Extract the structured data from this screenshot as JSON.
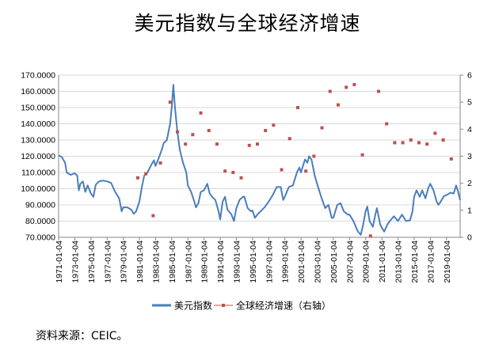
{
  "title": "美元指数与全球经济增速",
  "source_note": "资料来源：CEIC。",
  "colors": {
    "dxy": "#4a7ebb",
    "gdp": "#c0504d",
    "axis": "#868686"
  },
  "chart_data": {
    "type": "line",
    "title": "美元指数与全球经济增速",
    "y_left": {
      "min": 70,
      "max": 170,
      "step": 10,
      "tick_labels": [
        "70.0000",
        "80.0000",
        "90.0000",
        "100.0000",
        "110.0000",
        "120.0000",
        "130.0000",
        "140.0000",
        "150.0000",
        "160.0000",
        "170.0000"
      ]
    },
    "y_right": {
      "min": 0,
      "max": 6,
      "step": 1,
      "tick_labels": [
        "0",
        "1",
        "2",
        "3",
        "4",
        "5",
        "6"
      ]
    },
    "x_range": [
      1971.0,
      2020.7
    ],
    "x_tick_labels": [
      "1971-01-04",
      "1973-01-04",
      "1975-01-04",
      "1977-01-04",
      "1979-01-04",
      "1981-01-04",
      "1983-01-04",
      "1985-01-04",
      "1987-01-04",
      "1989-01-04",
      "1991-01-04",
      "1993-01-04",
      "1995-01-04",
      "1997-01-04",
      "1999-01-04",
      "2001-01-04",
      "2003-01-04",
      "2005-01-04",
      "2007-01-04",
      "2009-01-04",
      "2011-01-04",
      "2013-01-04",
      "2015-01-04",
      "2017-01-04",
      "2019-01-04"
    ],
    "grid": true,
    "legend_position": "bottom",
    "series": [
      {
        "name": "美元指数",
        "kind": "line",
        "axis": "left",
        "points": [
          [
            1971.0,
            120.5
          ],
          [
            1971.4,
            119.5
          ],
          [
            1971.8,
            116
          ],
          [
            1972.0,
            110
          ],
          [
            1972.5,
            108.5
          ],
          [
            1973.0,
            109.5
          ],
          [
            1973.3,
            108
          ],
          [
            1973.5,
            99
          ],
          [
            1973.7,
            103
          ],
          [
            1974.0,
            104.5
          ],
          [
            1974.3,
            98
          ],
          [
            1974.6,
            102
          ],
          [
            1975.0,
            97
          ],
          [
            1975.3,
            95
          ],
          [
            1975.6,
            102.5
          ],
          [
            1976.0,
            104.5
          ],
          [
            1976.5,
            105
          ],
          [
            1977.0,
            104.5
          ],
          [
            1977.5,
            103.5
          ],
          [
            1978.0,
            98
          ],
          [
            1978.5,
            94
          ],
          [
            1978.8,
            86
          ],
          [
            1979.0,
            88.5
          ],
          [
            1979.5,
            88.5
          ],
          [
            1980.0,
            87
          ],
          [
            1980.3,
            84.5
          ],
          [
            1980.6,
            86
          ],
          [
            1981.0,
            92
          ],
          [
            1981.3,
            101
          ],
          [
            1981.6,
            108
          ],
          [
            1982.0,
            110
          ],
          [
            1982.5,
            115
          ],
          [
            1982.8,
            117.5
          ],
          [
            1983.0,
            114
          ],
          [
            1983.4,
            119
          ],
          [
            1983.8,
            124.5
          ],
          [
            1984.0,
            128
          ],
          [
            1984.4,
            130
          ],
          [
            1984.8,
            140
          ],
          [
            1985.0,
            150
          ],
          [
            1985.2,
            164
          ],
          [
            1985.4,
            150
          ],
          [
            1985.7,
            135
          ],
          [
            1986.0,
            124
          ],
          [
            1986.4,
            116
          ],
          [
            1986.8,
            110
          ],
          [
            1987.0,
            102
          ],
          [
            1987.4,
            98
          ],
          [
            1987.8,
            92
          ],
          [
            1988.0,
            88.5
          ],
          [
            1988.3,
            91
          ],
          [
            1988.6,
            98
          ],
          [
            1989.0,
            99
          ],
          [
            1989.4,
            103
          ],
          [
            1989.7,
            97
          ],
          [
            1990.0,
            95
          ],
          [
            1990.4,
            93
          ],
          [
            1990.8,
            86
          ],
          [
            1991.0,
            81
          ],
          [
            1991.3,
            92
          ],
          [
            1991.6,
            95
          ],
          [
            1991.9,
            87
          ],
          [
            1992.0,
            86.5
          ],
          [
            1992.4,
            84
          ],
          [
            1992.7,
            80
          ],
          [
            1993.0,
            88
          ],
          [
            1993.4,
            93
          ],
          [
            1993.8,
            95
          ],
          [
            1994.0,
            95
          ],
          [
            1994.4,
            88
          ],
          [
            1994.8,
            86
          ],
          [
            1995.0,
            86.5
          ],
          [
            1995.3,
            82
          ],
          [
            1995.6,
            84
          ],
          [
            1996.0,
            86
          ],
          [
            1996.5,
            88.5
          ],
          [
            1997.0,
            92
          ],
          [
            1997.5,
            96
          ],
          [
            1998.0,
            101
          ],
          [
            1998.5,
            101
          ],
          [
            1998.8,
            93
          ],
          [
            1999.0,
            95
          ],
          [
            1999.5,
            101
          ],
          [
            2000.0,
            102
          ],
          [
            2000.5,
            110
          ],
          [
            2000.8,
            113
          ],
          [
            2001.0,
            110
          ],
          [
            2001.5,
            118
          ],
          [
            2001.8,
            116
          ],
          [
            2002.0,
            120
          ],
          [
            2002.3,
            118
          ],
          [
            2002.7,
            108
          ],
          [
            2003.0,
            103
          ],
          [
            2003.5,
            95
          ],
          [
            2004.0,
            88
          ],
          [
            2004.4,
            90
          ],
          [
            2004.8,
            82
          ],
          [
            2005.0,
            82
          ],
          [
            2005.5,
            90
          ],
          [
            2005.9,
            91
          ],
          [
            2006.3,
            86
          ],
          [
            2006.8,
            84
          ],
          [
            2007.0,
            84
          ],
          [
            2007.5,
            80
          ],
          [
            2008.0,
            74
          ],
          [
            2008.4,
            71.5
          ],
          [
            2008.7,
            78
          ],
          [
            2009.0,
            86
          ],
          [
            2009.2,
            89
          ],
          [
            2009.5,
            80
          ],
          [
            2009.9,
            76.5
          ],
          [
            2010.2,
            84
          ],
          [
            2010.4,
            88
          ],
          [
            2010.8,
            78
          ],
          [
            2011.0,
            76
          ],
          [
            2011.3,
            73.5
          ],
          [
            2011.7,
            78
          ],
          [
            2012.0,
            80
          ],
          [
            2012.5,
            83
          ],
          [
            2013.0,
            80
          ],
          [
            2013.5,
            84
          ],
          [
            2014.0,
            80
          ],
          [
            2014.5,
            80.5
          ],
          [
            2014.8,
            86
          ],
          [
            2015.0,
            95
          ],
          [
            2015.3,
            99
          ],
          [
            2015.7,
            95
          ],
          [
            2016.0,
            99
          ],
          [
            2016.4,
            94
          ],
          [
            2016.8,
            101
          ],
          [
            2017.0,
            103
          ],
          [
            2017.4,
            99
          ],
          [
            2017.8,
            92
          ],
          [
            2018.0,
            90
          ],
          [
            2018.3,
            92
          ],
          [
            2018.7,
            95.5
          ],
          [
            2019.0,
            96
          ],
          [
            2019.5,
            97.5
          ],
          [
            2019.9,
            97
          ],
          [
            2020.2,
            102
          ],
          [
            2020.4,
            99
          ],
          [
            2020.7,
            93
          ]
        ]
      },
      {
        "name": "全球经济增速（右轴）",
        "kind": "scatter",
        "axis": "right",
        "points": [
          [
            1980.8,
            2.2
          ],
          [
            1981.8,
            2.35
          ],
          [
            1982.7,
            0.8
          ],
          [
            1983.6,
            2.75
          ],
          [
            1984.8,
            5.0
          ],
          [
            1985.7,
            3.9
          ],
          [
            1986.7,
            3.45
          ],
          [
            1987.6,
            3.8
          ],
          [
            1988.6,
            4.6
          ],
          [
            1989.6,
            3.95
          ],
          [
            1990.6,
            3.45
          ],
          [
            1991.6,
            2.45
          ],
          [
            1992.6,
            2.4
          ],
          [
            1993.6,
            2.2
          ],
          [
            1994.6,
            3.4
          ],
          [
            1995.6,
            3.45
          ],
          [
            1996.6,
            3.95
          ],
          [
            1997.6,
            4.15
          ],
          [
            1998.6,
            2.5
          ],
          [
            1999.6,
            3.65
          ],
          [
            2000.6,
            4.8
          ],
          [
            2001.6,
            2.45
          ],
          [
            2002.6,
            3.0
          ],
          [
            2003.6,
            4.05
          ],
          [
            2004.6,
            5.4
          ],
          [
            2005.6,
            4.9
          ],
          [
            2006.6,
            5.55
          ],
          [
            2007.6,
            5.65
          ],
          [
            2008.6,
            3.05
          ],
          [
            2009.6,
            0.05
          ],
          [
            2010.6,
            5.4
          ],
          [
            2011.6,
            4.2
          ],
          [
            2012.6,
            3.5
          ],
          [
            2013.6,
            3.5
          ],
          [
            2014.6,
            3.6
          ],
          [
            2015.6,
            3.5
          ],
          [
            2016.6,
            3.45
          ],
          [
            2017.6,
            3.85
          ],
          [
            2018.6,
            3.6
          ],
          [
            2019.6,
            2.9
          ]
        ]
      }
    ]
  }
}
